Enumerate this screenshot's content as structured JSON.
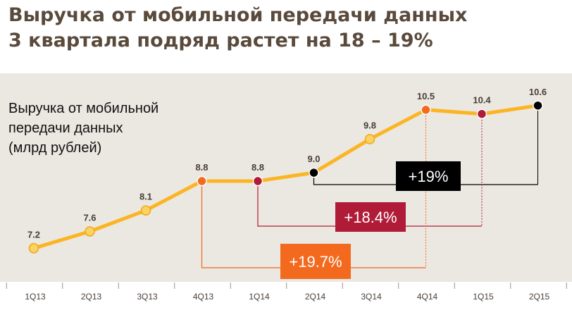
{
  "title": {
    "line1": "Выручка от мобильной передачи данных",
    "line2": "3 квартала подряд растет на 18 – 19%"
  },
  "colors": {
    "line": "#fbb523",
    "marker_default": "#fbd264",
    "marker_orange": "#f36a1f",
    "marker_crimson": "#b01c38",
    "marker_black": "#000000",
    "panel_bg": "#ebe7e1",
    "title": "#5a4a3c"
  },
  "chart_data": {
    "type": "line",
    "ylabel_lines": [
      "Выручка от мобильной",
      "передачи данных",
      "(млрд рублей)"
    ],
    "categories": [
      "1Q13",
      "2Q13",
      "3Q13",
      "4Q13",
      "1Q14",
      "2Q14",
      "3Q14",
      "4Q14",
      "1Q15",
      "2Q15"
    ],
    "values": [
      7.2,
      7.6,
      8.1,
      8.8,
      8.8,
      9.0,
      9.8,
      10.5,
      10.4,
      10.6
    ],
    "value_labels": [
      "7.2",
      "7.6",
      "8.1",
      "8.8",
      "8.8",
      "9.0",
      "9.8",
      "10.5",
      "10.4",
      "10.6"
    ],
    "marker_colors": [
      "default",
      "default",
      "default",
      "orange",
      "crimson",
      "black",
      "default",
      "orange",
      "crimson",
      "black"
    ],
    "ylim": [
      6.5,
      11.0
    ],
    "grid": false,
    "annotations": [
      {
        "text": "+19%",
        "from": "2Q14",
        "to": "2Q15",
        "color": "#000000"
      },
      {
        "text": "+18.4%",
        "from": "1Q14",
        "to": "1Q15",
        "color": "#b01c38"
      },
      {
        "text": "+19.7%",
        "from": "4Q13",
        "to": "4Q14",
        "color": "#f36a1f"
      }
    ]
  }
}
